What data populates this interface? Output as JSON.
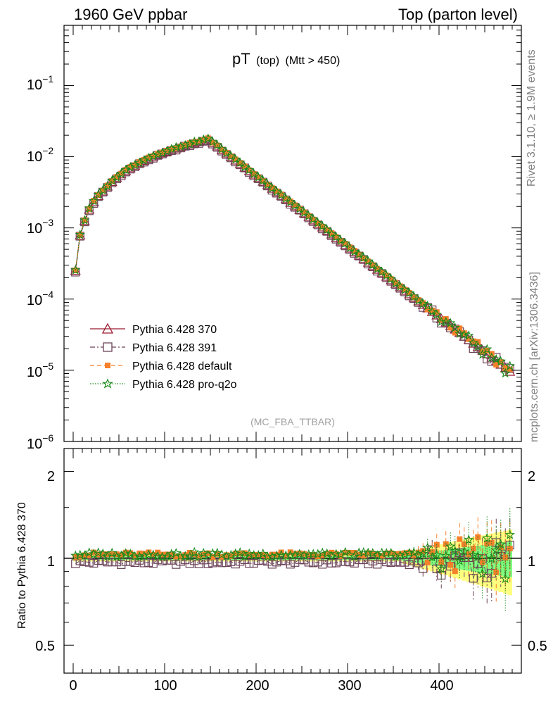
{
  "header": {
    "left": "1960 GeV ppbar",
    "right": "Top (parton level)"
  },
  "plot_title": {
    "main": "pT",
    "sub1": "(top)",
    "sub2": "(Mtt > 450)"
  },
  "side_text": {
    "rivet": "Rivet 3.1.10, ≥ 1.9M events",
    "mcplots": "mcplots.cern.ch [arXiv:1306.3436]"
  },
  "watermark": "(MC_FBA_TTBAR)",
  "ratio_ylabel": "Ratio to Pythia 6.428 370",
  "top_tick_labels": [
    {
      "base": "10",
      "exp": "−1"
    },
    {
      "base": "10",
      "exp": "−2"
    },
    {
      "base": "10",
      "exp": "−3"
    },
    {
      "base": "10",
      "exp": "−4"
    },
    {
      "base": "10",
      "exp": "−5"
    },
    {
      "base": "10",
      "exp": "−6"
    }
  ],
  "ratio_tick_labels": [
    "2",
    "1",
    "0.5"
  ],
  "x_tick_labels": [
    "0",
    "100",
    "200",
    "300",
    "400"
  ],
  "colors": {
    "p370": "#9b1b30",
    "p391": "#6b4257",
    "default": "#f6802b",
    "proq2o": "#1a8a1a",
    "band_yellow": "#ffff80",
    "band_green": "#80ff80"
  },
  "legend": [
    {
      "label": "Pythia 6.428 370"
    },
    {
      "label": "Pythia 6.428 391"
    },
    {
      "label": "Pythia 6.428 default"
    },
    {
      "label": "Pythia 6.428 pro-q2o"
    }
  ],
  "chart_data": {
    "type": "line",
    "x_axis": {
      "range": [
        -10,
        490
      ],
      "ticks": [
        0,
        100,
        200,
        300,
        400
      ]
    },
    "main_panel": {
      "yscale": "log",
      "ylim": [
        1e-06,
        0.7
      ],
      "ticks": [
        0.1,
        0.01,
        0.001,
        0.0001,
        1e-05,
        1e-06
      ]
    },
    "ratio_panel": {
      "yscale": "log",
      "ylim": [
        0.4,
        2.4
      ],
      "ticks": [
        2,
        1,
        0.5
      ],
      "reference": 1
    },
    "x_range": [
      0,
      480
    ],
    "bin_width": 5,
    "shape": {
      "rise": [
        [
          2.5,
          0.00025
        ],
        [
          7.5,
          0.00078
        ],
        [
          12.5,
          0.00125
        ],
        [
          17.5,
          0.0018
        ],
        [
          22.5,
          0.0023
        ],
        [
          27.5,
          0.0028
        ],
        [
          35,
          0.0035
        ]
      ],
      "linear_region": [
        [
          35,
          0.0035
        ],
        [
          145,
          0.017
        ]
      ],
      "peak": [
        147.5,
        0.0175
      ],
      "tail": [
        [
          147.5,
          0.0175
        ],
        [
          480,
          9e-06
        ]
      ]
    },
    "series": [
      {
        "name": "Pythia 6.428 370",
        "marker": "open-triangle",
        "line": "solid",
        "ratio": 1.0
      },
      {
        "name": "Pythia 6.428 391",
        "marker": "open-square",
        "line": "dash-dot",
        "ratio_approx": 0.97
      },
      {
        "name": "Pythia 6.428 default",
        "marker": "filled-square",
        "line": "dashed",
        "ratio_approx": 1.03
      },
      {
        "name": "Pythia 6.428 pro-q2o",
        "marker": "star",
        "line": "dotted",
        "ratio_approx": 1.03
      }
    ]
  }
}
